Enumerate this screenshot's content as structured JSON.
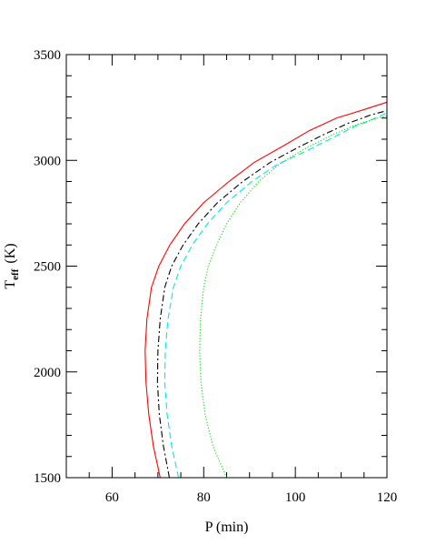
{
  "chart_data": {
    "type": "line",
    "xlabel": "P (min)",
    "ylabel": "T",
    "ylabel_sub": "eff",
    "ylabel_unit": "(K)",
    "xlim": [
      50,
      120
    ],
    "ylim": [
      1500,
      3500
    ],
    "x_major_ticks": [
      60,
      80,
      100,
      120
    ],
    "x_minor_step": 5,
    "y_major_ticks": [
      1500,
      2000,
      2500,
      3000,
      3500
    ],
    "y_minor_step": 100,
    "grid": false,
    "legend": "none",
    "series": [
      {
        "color": "#ff0000",
        "dash": "solid",
        "points": [
          [
            70.5,
            1500
          ],
          [
            69.0,
            1650
          ],
          [
            68.0,
            1800
          ],
          [
            67.4,
            1950
          ],
          [
            67.2,
            2100
          ],
          [
            67.6,
            2250
          ],
          [
            68.6,
            2400
          ],
          [
            70.2,
            2500
          ],
          [
            72.6,
            2600
          ],
          [
            75.8,
            2700
          ],
          [
            80.0,
            2800
          ],
          [
            85.5,
            2900
          ],
          [
            91.0,
            2990
          ],
          [
            97.5,
            3070
          ],
          [
            103.0,
            3140
          ],
          [
            109.0,
            3200
          ],
          [
            115.0,
            3240
          ],
          [
            120.0,
            3275
          ]
        ]
      },
      {
        "color": "#000000",
        "dash": "dashdot",
        "points": [
          [
            72.5,
            1500
          ],
          [
            71.2,
            1650
          ],
          [
            70.3,
            1800
          ],
          [
            69.9,
            1950
          ],
          [
            70.0,
            2100
          ],
          [
            70.5,
            2250
          ],
          [
            71.5,
            2400
          ],
          [
            73.0,
            2500
          ],
          [
            75.5,
            2600
          ],
          [
            78.8,
            2700
          ],
          [
            83.0,
            2800
          ],
          [
            88.5,
            2900
          ],
          [
            94.5,
            2990
          ],
          [
            100.5,
            3060
          ],
          [
            106.0,
            3120
          ],
          [
            111.5,
            3175
          ],
          [
            116.5,
            3215
          ],
          [
            120.0,
            3235
          ]
        ]
      },
      {
        "color": "#00e5ee",
        "dash": "dashed",
        "points": [
          [
            74.5,
            1500
          ],
          [
            73.0,
            1650
          ],
          [
            72.0,
            1800
          ],
          [
            71.5,
            1950
          ],
          [
            71.6,
            2100
          ],
          [
            72.2,
            2250
          ],
          [
            73.4,
            2400
          ],
          [
            75.0,
            2500
          ],
          [
            77.5,
            2600
          ],
          [
            80.8,
            2700
          ],
          [
            85.0,
            2800
          ],
          [
            90.5,
            2900
          ],
          [
            96.0,
            2980
          ],
          [
            102.0,
            3040
          ],
          [
            107.5,
            3100
          ],
          [
            113.0,
            3160
          ],
          [
            117.5,
            3200
          ],
          [
            120.0,
            3225
          ]
        ]
      },
      {
        "color": "#00dd00",
        "dash": "dotted",
        "points": [
          [
            85.0,
            1500
          ],
          [
            82.0,
            1650
          ],
          [
            80.3,
            1800
          ],
          [
            79.4,
            1950
          ],
          [
            79.1,
            2100
          ],
          [
            79.3,
            2250
          ],
          [
            80.0,
            2400
          ],
          [
            81.0,
            2500
          ],
          [
            82.8,
            2600
          ],
          [
            85.0,
            2700
          ],
          [
            88.0,
            2800
          ],
          [
            92.0,
            2900
          ],
          [
            97.0,
            2990
          ],
          [
            102.5,
            3060
          ],
          [
            108.0,
            3120
          ],
          [
            113.5,
            3170
          ],
          [
            118.0,
            3200
          ],
          [
            120.0,
            3210
          ]
        ]
      }
    ]
  }
}
